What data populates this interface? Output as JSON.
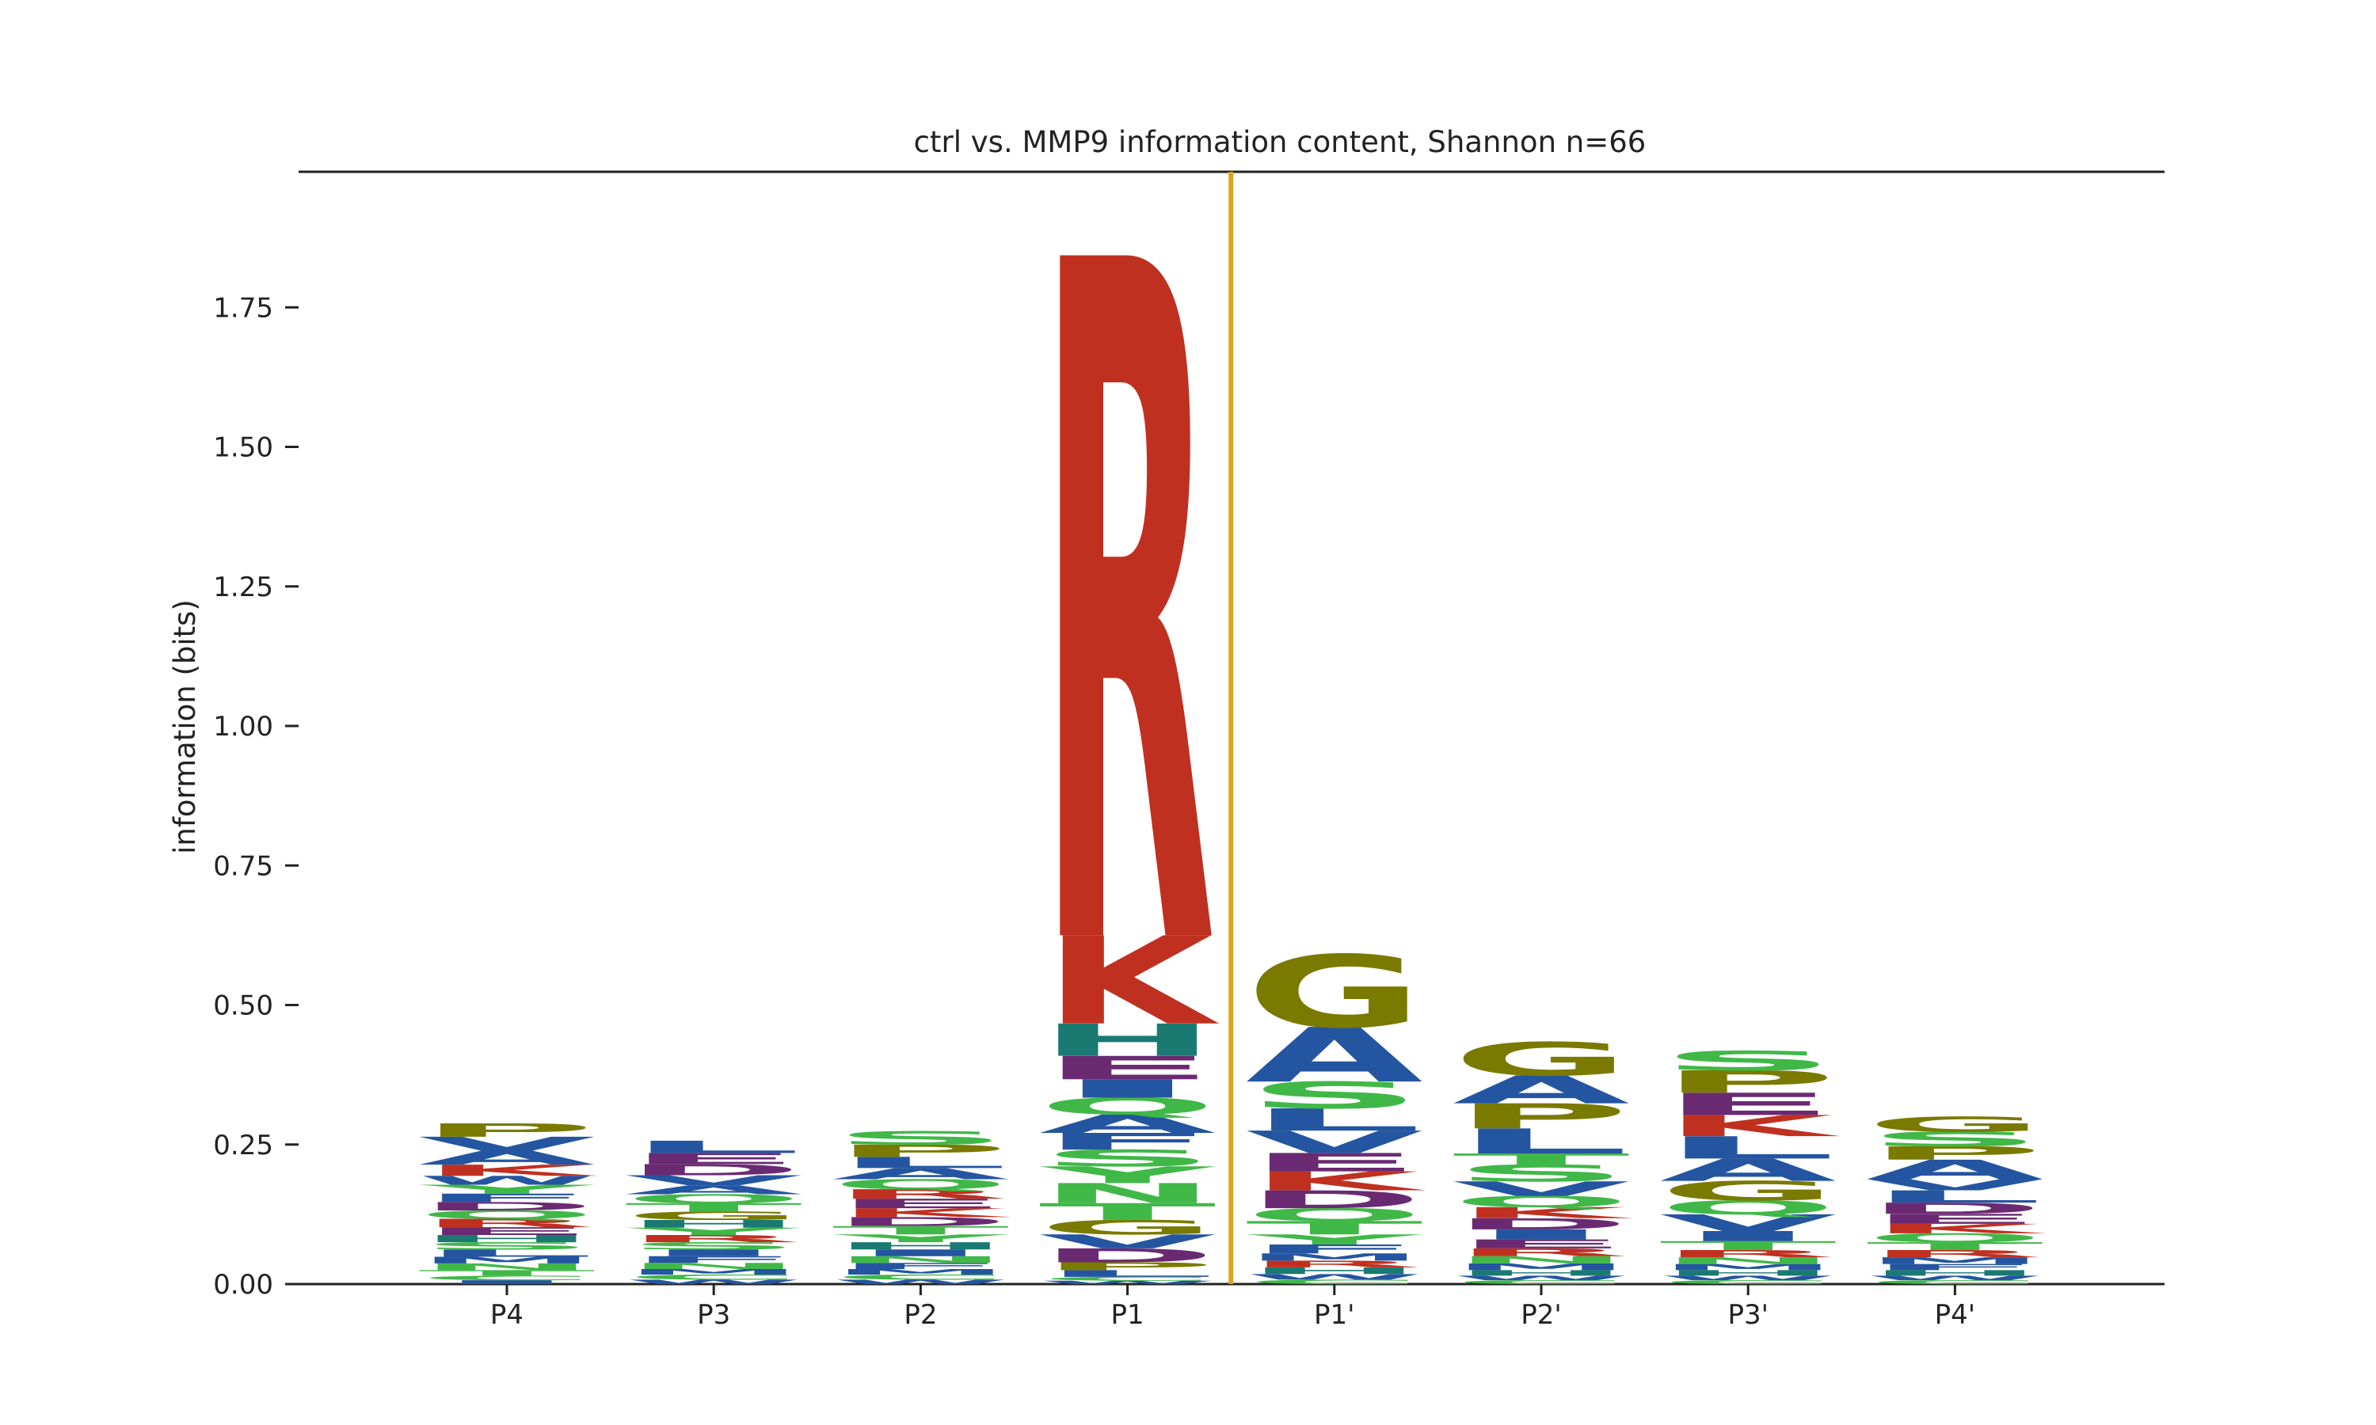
{
  "chart_data": {
    "type": "sequence_logo",
    "title": "ctrl vs. MMP9 information content, Shannon n=66",
    "ylabel": "information (bits)",
    "xlabel": "",
    "ylim": [
      0,
      1.97
    ],
    "yticks": [
      "0.00",
      "0.25",
      "0.50",
      "0.75",
      "1.00",
      "1.25",
      "1.50",
      "1.75"
    ],
    "ytick_values": [
      0,
      0.25,
      0.5,
      0.75,
      1.0,
      1.25,
      1.5,
      1.75
    ],
    "cleavage_site_between": [
      "P1",
      "P1'"
    ],
    "colors": {
      "acidic_purple": "#6a2a72",
      "basic_red": "#c03020",
      "hydrophobic_blue": "#2455a0",
      "polar_green": "#40b848",
      "special_olive": "#7a7a00",
      "histidine_teal": "#1a7a72",
      "cleavage_line": "#daa520",
      "axis": "#222222"
    },
    "positions": [
      {
        "label": "P4",
        "stack": [
          {
            "aa": "I",
            "bits": 0.007
          },
          {
            "aa": "C",
            "bits": 0.008
          },
          {
            "aa": "T",
            "bits": 0.01
          },
          {
            "aa": "N",
            "bits": 0.012
          },
          {
            "aa": "M",
            "bits": 0.012
          },
          {
            "aa": "L",
            "bits": 0.013
          },
          {
            "aa": "S",
            "bits": 0.013
          },
          {
            "aa": "H",
            "bits": 0.013
          },
          {
            "aa": "E",
            "bits": 0.014
          },
          {
            "aa": "R",
            "bits": 0.015
          },
          {
            "aa": "Q",
            "bits": 0.015
          },
          {
            "aa": "D",
            "bits": 0.015
          },
          {
            "aa": "F",
            "bits": 0.015
          },
          {
            "aa": "Y",
            "bits": 0.016
          },
          {
            "aa": "W",
            "bits": 0.016
          },
          {
            "aa": "K",
            "bits": 0.02
          },
          {
            "aa": "A",
            "bits": 0.025
          },
          {
            "aa": "V",
            "bits": 0.025
          },
          {
            "aa": "P",
            "bits": 0.024
          }
        ]
      },
      {
        "label": "P3",
        "stack": [
          {
            "aa": "W",
            "bits": 0.008
          },
          {
            "aa": "C",
            "bits": 0.009
          },
          {
            "aa": "M",
            "bits": 0.01
          },
          {
            "aa": "N",
            "bits": 0.011
          },
          {
            "aa": "F",
            "bits": 0.012
          },
          {
            "aa": "I",
            "bits": 0.012
          },
          {
            "aa": "S",
            "bits": 0.013
          },
          {
            "aa": "R",
            "bits": 0.013
          },
          {
            "aa": "Y",
            "bits": 0.013
          },
          {
            "aa": "H",
            "bits": 0.014
          },
          {
            "aa": "G",
            "bits": 0.015
          },
          {
            "aa": "T",
            "bits": 0.015
          },
          {
            "aa": "Q",
            "bits": 0.016
          },
          {
            "aa": "A",
            "bits": 0.016
          },
          {
            "aa": "V",
            "bits": 0.018
          },
          {
            "aa": "D",
            "bits": 0.02
          },
          {
            "aa": "E",
            "bits": 0.02
          },
          {
            "aa": "L",
            "bits": 0.022
          }
        ]
      },
      {
        "label": "P2",
        "stack": [
          {
            "aa": "W",
            "bits": 0.008
          },
          {
            "aa": "C",
            "bits": 0.009
          },
          {
            "aa": "M",
            "bits": 0.01
          },
          {
            "aa": "F",
            "bits": 0.011
          },
          {
            "aa": "N",
            "bits": 0.012
          },
          {
            "aa": "I",
            "bits": 0.012
          },
          {
            "aa": "H",
            "bits": 0.013
          },
          {
            "aa": "Y",
            "bits": 0.014
          },
          {
            "aa": "T",
            "bits": 0.015
          },
          {
            "aa": "D",
            "bits": 0.016
          },
          {
            "aa": "K",
            "bits": 0.016
          },
          {
            "aa": "E",
            "bits": 0.017
          },
          {
            "aa": "R",
            "bits": 0.017
          },
          {
            "aa": "Q",
            "bits": 0.018
          },
          {
            "aa": "A",
            "bits": 0.02
          },
          {
            "aa": "L",
            "bits": 0.02
          },
          {
            "aa": "P",
            "bits": 0.022
          },
          {
            "aa": "S",
            "bits": 0.024
          }
        ]
      },
      {
        "label": "P1",
        "stack": [
          {
            "aa": "W",
            "bits": 0.006
          },
          {
            "aa": "C",
            "bits": 0.007
          },
          {
            "aa": "L",
            "bits": 0.012
          },
          {
            "aa": "P",
            "bits": 0.014
          },
          {
            "aa": "D",
            "bits": 0.025
          },
          {
            "aa": "V",
            "bits": 0.025
          },
          {
            "aa": "G",
            "bits": 0.026
          },
          {
            "aa": "T",
            "bits": 0.03
          },
          {
            "aa": "N",
            "bits": 0.036
          },
          {
            "aa": "Y",
            "bits": 0.03
          },
          {
            "aa": "S",
            "bits": 0.03
          },
          {
            "aa": "F",
            "bits": 0.03
          },
          {
            "aa": "A",
            "bits": 0.033
          },
          {
            "aa": "Q",
            "bits": 0.03
          },
          {
            "aa": "I",
            "bits": 0.033
          },
          {
            "aa": "E",
            "bits": 0.042
          },
          {
            "aa": "H",
            "bits": 0.058
          },
          {
            "aa": "K",
            "bits": 0.158
          },
          {
            "aa": "R",
            "bits": 1.22
          }
        ]
      },
      {
        "label": "P1'",
        "stack": [
          {
            "aa": "C",
            "bits": 0.008
          },
          {
            "aa": "W",
            "bits": 0.01
          },
          {
            "aa": "H",
            "bits": 0.012
          },
          {
            "aa": "R",
            "bits": 0.012
          },
          {
            "aa": "M",
            "bits": 0.013
          },
          {
            "aa": "F",
            "bits": 0.016
          },
          {
            "aa": "Y",
            "bits": 0.018
          },
          {
            "aa": "T",
            "bits": 0.024
          },
          {
            "aa": "Q",
            "bits": 0.023
          },
          {
            "aa": "D",
            "bits": 0.032
          },
          {
            "aa": "K",
            "bits": 0.034
          },
          {
            "aa": "E",
            "bits": 0.033
          },
          {
            "aa": "V",
            "bits": 0.04
          },
          {
            "aa": "L",
            "bits": 0.04
          },
          {
            "aa": "S",
            "bits": 0.048
          },
          {
            "aa": "A",
            "bits": 0.098
          },
          {
            "aa": "G",
            "bits": 0.13
          }
        ]
      },
      {
        "label": "P2'",
        "stack": [
          {
            "aa": "C",
            "bits": 0.007
          },
          {
            "aa": "W",
            "bits": 0.008
          },
          {
            "aa": "H",
            "bits": 0.01
          },
          {
            "aa": "M",
            "bits": 0.012
          },
          {
            "aa": "N",
            "bits": 0.013
          },
          {
            "aa": "R",
            "bits": 0.014
          },
          {
            "aa": "E",
            "bits": 0.016
          },
          {
            "aa": "I",
            "bits": 0.018
          },
          {
            "aa": "D",
            "bits": 0.02
          },
          {
            "aa": "K",
            "bits": 0.02
          },
          {
            "aa": "Q",
            "bits": 0.02
          },
          {
            "aa": "V",
            "bits": 0.026
          },
          {
            "aa": "S",
            "bits": 0.03
          },
          {
            "aa": "T",
            "bits": 0.02
          },
          {
            "aa": "L",
            "bits": 0.045
          },
          {
            "aa": "P",
            "bits": 0.045
          },
          {
            "aa": "A",
            "bits": 0.05
          },
          {
            "aa": "G",
            "bits": 0.06
          }
        ]
      },
      {
        "label": "P3'",
        "stack": [
          {
            "aa": "C",
            "bits": 0.007
          },
          {
            "aa": "W",
            "bits": 0.008
          },
          {
            "aa": "H",
            "bits": 0.01
          },
          {
            "aa": "M",
            "bits": 0.011
          },
          {
            "aa": "N",
            "bits": 0.012
          },
          {
            "aa": "R",
            "bits": 0.013
          },
          {
            "aa": "T",
            "bits": 0.016
          },
          {
            "aa": "I",
            "bits": 0.018
          },
          {
            "aa": "V",
            "bits": 0.03
          },
          {
            "aa": "Q",
            "bits": 0.025
          },
          {
            "aa": "G",
            "bits": 0.035
          },
          {
            "aa": "A",
            "bits": 0.04
          },
          {
            "aa": "L",
            "bits": 0.04
          },
          {
            "aa": "K",
            "bits": 0.038
          },
          {
            "aa": "E",
            "bits": 0.04
          },
          {
            "aa": "P",
            "bits": 0.04
          },
          {
            "aa": "S",
            "bits": 0.035
          }
        ]
      },
      {
        "label": "P4'",
        "stack": [
          {
            "aa": "C",
            "bits": 0.007
          },
          {
            "aa": "W",
            "bits": 0.008
          },
          {
            "aa": "H",
            "bits": 0.01
          },
          {
            "aa": "F",
            "bits": 0.011
          },
          {
            "aa": "M",
            "bits": 0.012
          },
          {
            "aa": "R",
            "bits": 0.013
          },
          {
            "aa": "T",
            "bits": 0.014
          },
          {
            "aa": "Q",
            "bits": 0.016
          },
          {
            "aa": "K",
            "bits": 0.017
          },
          {
            "aa": "E",
            "bits": 0.018
          },
          {
            "aa": "D",
            "bits": 0.02
          },
          {
            "aa": "L",
            "bits": 0.022
          },
          {
            "aa": "V",
            "bits": 0.02
          },
          {
            "aa": "A",
            "bits": 0.035
          },
          {
            "aa": "P",
            "bits": 0.024
          },
          {
            "aa": "S",
            "bits": 0.026
          },
          {
            "aa": "G",
            "bits": 0.027
          }
        ]
      }
    ]
  }
}
